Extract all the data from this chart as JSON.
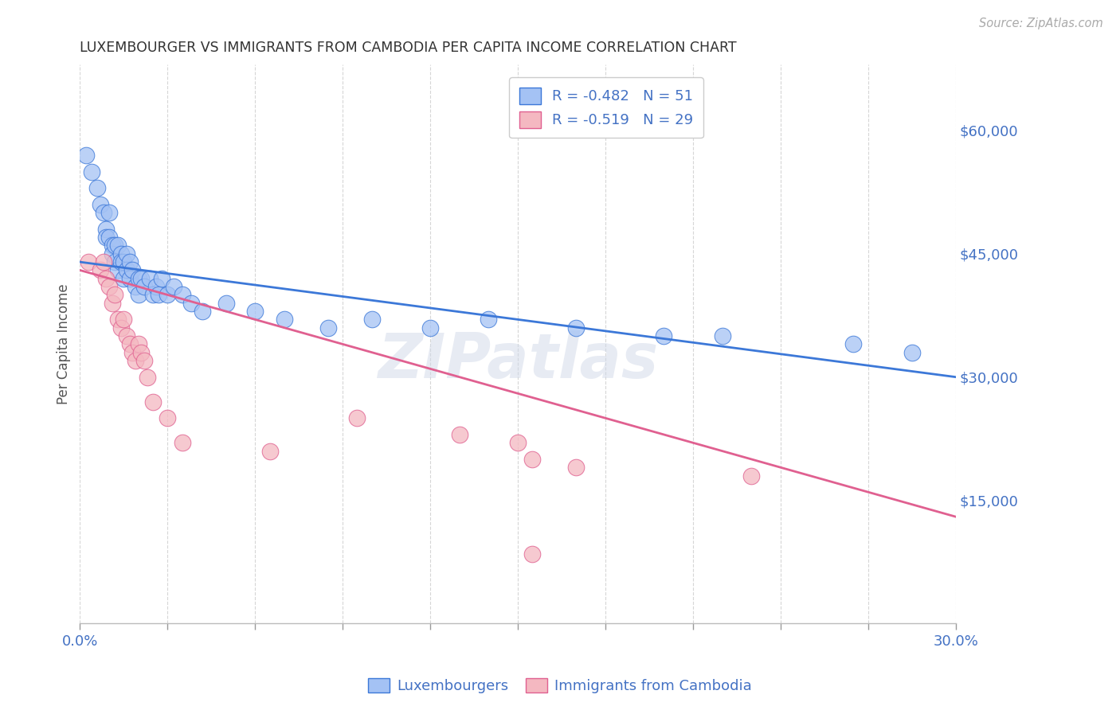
{
  "title": "LUXEMBOURGER VS IMMIGRANTS FROM CAMBODIA PER CAPITA INCOME CORRELATION CHART",
  "source": "Source: ZipAtlas.com",
  "ylabel": "Per Capita Income",
  "ytick_labels": [
    "$15,000",
    "$30,000",
    "$45,000",
    "$60,000"
  ],
  "ytick_values": [
    15000,
    30000,
    45000,
    60000
  ],
  "xmin": 0.0,
  "xmax": 0.3,
  "ymin": 0,
  "ymax": 68000,
  "blue_R": "-0.482",
  "blue_N": "51",
  "pink_R": "-0.519",
  "pink_N": "29",
  "blue_color": "#a4c2f4",
  "pink_color": "#f4b8c1",
  "blue_line_color": "#3c78d8",
  "pink_line_color": "#e06090",
  "axis_color": "#4472c4",
  "watermark_text": "ZIPatlas",
  "legend_label_blue": "Luxembourgers",
  "legend_label_pink": "Immigrants from Cambodia",
  "blue_scatter_x": [
    0.002,
    0.004,
    0.006,
    0.007,
    0.008,
    0.009,
    0.009,
    0.01,
    0.01,
    0.011,
    0.011,
    0.012,
    0.012,
    0.013,
    0.013,
    0.014,
    0.014,
    0.015,
    0.015,
    0.016,
    0.016,
    0.017,
    0.017,
    0.018,
    0.019,
    0.02,
    0.02,
    0.021,
    0.022,
    0.024,
    0.025,
    0.026,
    0.027,
    0.028,
    0.03,
    0.032,
    0.035,
    0.038,
    0.042,
    0.05,
    0.06,
    0.07,
    0.085,
    0.1,
    0.12,
    0.14,
    0.17,
    0.2,
    0.22,
    0.265,
    0.285
  ],
  "blue_scatter_y": [
    57000,
    55000,
    53000,
    51000,
    50000,
    48000,
    47000,
    50000,
    47000,
    46000,
    45000,
    46000,
    44000,
    46000,
    43000,
    45000,
    44000,
    44000,
    42000,
    45000,
    43000,
    44000,
    42000,
    43000,
    41000,
    42000,
    40000,
    42000,
    41000,
    42000,
    40000,
    41000,
    40000,
    42000,
    40000,
    41000,
    40000,
    39000,
    38000,
    39000,
    38000,
    37000,
    36000,
    37000,
    36000,
    37000,
    36000,
    35000,
    35000,
    34000,
    33000
  ],
  "pink_scatter_x": [
    0.003,
    0.007,
    0.008,
    0.009,
    0.01,
    0.011,
    0.012,
    0.013,
    0.014,
    0.015,
    0.016,
    0.017,
    0.018,
    0.019,
    0.02,
    0.021,
    0.022,
    0.023,
    0.025,
    0.03,
    0.035,
    0.065,
    0.095,
    0.13,
    0.15,
    0.155,
    0.17,
    0.23,
    0.155
  ],
  "pink_scatter_y": [
    44000,
    43000,
    44000,
    42000,
    41000,
    39000,
    40000,
    37000,
    36000,
    37000,
    35000,
    34000,
    33000,
    32000,
    34000,
    33000,
    32000,
    30000,
    27000,
    25000,
    22000,
    21000,
    25000,
    23000,
    22000,
    20000,
    19000,
    18000,
    8500
  ],
  "blue_trend_x": [
    0.0,
    0.3
  ],
  "blue_trend_y": [
    44000,
    30000
  ],
  "pink_trend_x": [
    0.0,
    0.3
  ],
  "pink_trend_y": [
    43000,
    13000
  ]
}
